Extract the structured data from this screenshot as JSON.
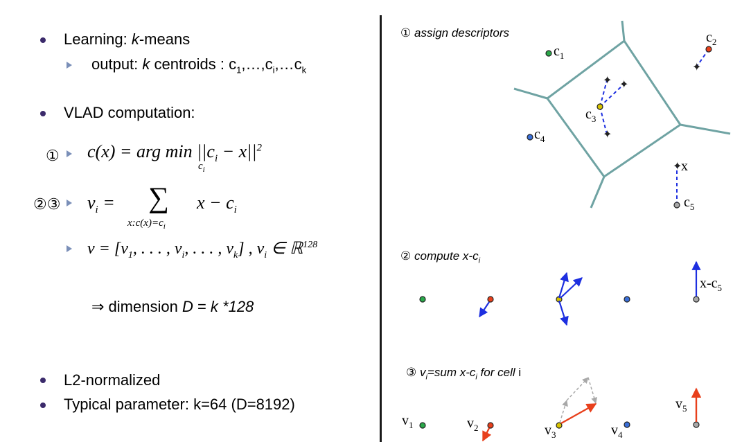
{
  "left": {
    "b1_pre": "Learning: ",
    "b1_k": "k",
    "b1_post": "-means",
    "b1_sub_pre": "output: ",
    "b1_sub_k": "k",
    "b1_sub_post": " centroids : c",
    "b1_sub_i1": "1",
    "b1_sub_mid1": ",…,c",
    "b1_sub_i2": "i",
    "b1_sub_mid2": ",…c",
    "b1_sub_i3": "k",
    "b2": "VLAD computation:",
    "marker1": "①",
    "marker23": "②③",
    "f1_a": "c(x) = arg min ||c",
    "f1_i": "i",
    "f1_b": " − x||",
    "f1_sup": "2",
    "f1_under": "c",
    "f1_under_i": "i",
    "f2_a": "v",
    "f2_i": "i",
    "f2_b": " =",
    "f2_sum": "∑",
    "f2_c": "x − c",
    "f2_ci": "i",
    "f2_under": "x:c(x)=c",
    "f2_under_i": "i",
    "f3_a": "v = [v",
    "f3_1": "1",
    "f3_b": ", . . . , v",
    "f3_i": "i",
    "f3_c": ", . . . , v",
    "f3_k": "k",
    "f3_d": "] ,  v",
    "f3_i2": "i",
    "f3_e": " ∈ ℝ",
    "f3_sup": "128",
    "dim_pre": "⇒ dimension ",
    "dim_D": "D",
    "dim_eq": " = ",
    "dim_rest": "k *128",
    "b3": "L2-normalized",
    "b4": "Typical parameter: k=64 (D=8192)"
  },
  "right": {
    "p1_num": "①",
    "p1_text": "assign descriptors",
    "c1": "c",
    "c1_s": "1",
    "c2": "c",
    "c2_s": "2",
    "c3": "c",
    "c3_s": "3",
    "c4": "c",
    "c4_s": "4",
    "c5": "c",
    "c5_s": "5",
    "x": "x",
    "p2_num": "②",
    "p2_text": "compute x-c",
    "p2_s": "i",
    "xc5": "x-c",
    "xc5_s": "5",
    "p3_num": "③",
    "p3_v": "v",
    "p3_vi": "i",
    "p3_text": "=sum x-c",
    "p3_ci": "i",
    "p3_text2": " for cell ",
    "p3_i": "i",
    "v1": "v",
    "v1_s": "1",
    "v2": "v",
    "v2_s": "2",
    "v3": "v",
    "v3_s": "3",
    "v4": "v",
    "v4_s": "4",
    "v5": "v",
    "v5_s": "5"
  },
  "colors": {
    "voronoi": "#6fa3a3",
    "blue": "#1d2fe0",
    "red": "#e8401c",
    "green": "#2aa84a",
    "yellow": "#d8c400",
    "node_blue": "#3a6fd8",
    "gray": "#a8a8a8"
  }
}
